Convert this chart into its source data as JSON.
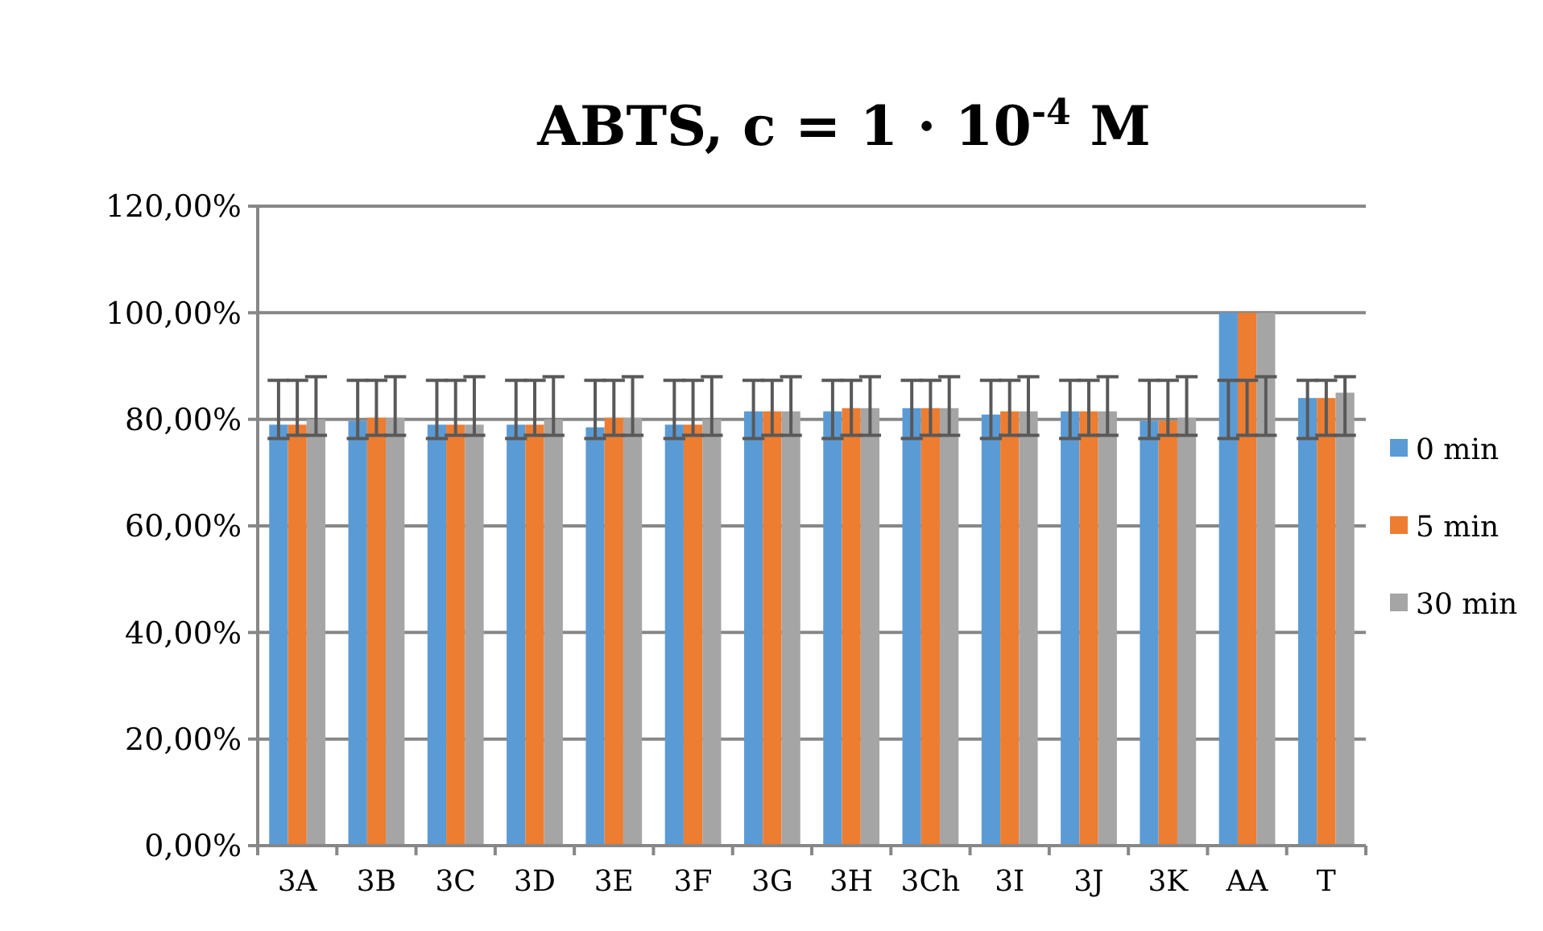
{
  "chart_data": {
    "type": "bar",
    "title": "ABTS, c = 1 · 10$^{-4}$ M",
    "categories": [
      "3A",
      "3B",
      "3C",
      "3D",
      "3E",
      "3F",
      "3G",
      "3H",
      "3Ch",
      "3I",
      "3J",
      "3K",
      "AA",
      "T"
    ],
    "series": [
      {
        "name": "0 min",
        "color": "#5b9bd5",
        "values": [
          79,
          79.7,
          79,
          79,
          78.5,
          79,
          81.5,
          81.5,
          82.1,
          80.9,
          81.5,
          79.7,
          100,
          84
        ],
        "errors": [
          [
            76.4,
            87.3
          ],
          [
            76.4,
            87.3
          ],
          [
            76.4,
            87.3
          ],
          [
            76.4,
            87.3
          ],
          [
            76.4,
            87.3
          ],
          [
            76.4,
            87.3
          ],
          [
            76.4,
            87.3
          ],
          [
            76.4,
            87.3
          ],
          [
            76.4,
            87.3
          ],
          [
            76.4,
            87.3
          ],
          [
            76.4,
            87.3
          ],
          [
            76.4,
            87.3
          ],
          [
            76.4,
            87.3
          ],
          [
            76.4,
            87.3
          ]
        ]
      },
      {
        "name": "5 min",
        "color": "#ed7d31",
        "values": [
          79,
          80.3,
          79,
          79,
          80.3,
          79,
          81.5,
          82.1,
          82.1,
          81.5,
          81.5,
          79.7,
          100,
          84
        ],
        "errors": [
          [
            77,
            87.3
          ],
          [
            77,
            87.3
          ],
          [
            77,
            87.3
          ],
          [
            77,
            87.3
          ],
          [
            77,
            87.3
          ],
          [
            77,
            87.3
          ],
          [
            77,
            87.3
          ],
          [
            77,
            87.3
          ],
          [
            77,
            87.3
          ],
          [
            77,
            87.3
          ],
          [
            77,
            87.3
          ],
          [
            77,
            87.3
          ],
          [
            77,
            87.3
          ],
          [
            77,
            87.3
          ]
        ]
      },
      {
        "name": "30 min",
        "color": "#a5a5a5",
        "values": [
          80,
          80.3,
          79,
          80,
          80.3,
          80,
          81.5,
          82.1,
          82.1,
          81.5,
          81.5,
          80.3,
          100,
          85
        ],
        "errors": [
          [
            77,
            88
          ],
          [
            77,
            88
          ],
          [
            77,
            88
          ],
          [
            77,
            88
          ],
          [
            77,
            88
          ],
          [
            77,
            88
          ],
          [
            77,
            88
          ],
          [
            77,
            88
          ],
          [
            77,
            88
          ],
          [
            77,
            88
          ],
          [
            77,
            88
          ],
          [
            77,
            88
          ],
          [
            77,
            88
          ],
          [
            77,
            88
          ]
        ]
      }
    ],
    "ylim": [
      0,
      120
    ],
    "yticks": [
      {
        "value": 0,
        "label": "0,00%"
      },
      {
        "value": 20,
        "label": "20,00%"
      },
      {
        "value": 40,
        "label": "40,00%"
      },
      {
        "value": 60,
        "label": "60,00%"
      },
      {
        "value": 80,
        "label": "80,00%"
      },
      {
        "value": 100,
        "label": "100,00%"
      },
      {
        "value": 120,
        "label": "120,00%"
      }
    ],
    "grid": "y",
    "legend": "right"
  }
}
